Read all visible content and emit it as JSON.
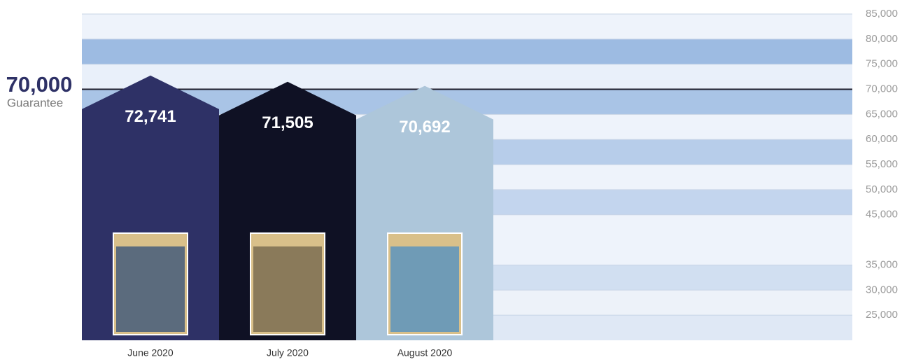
{
  "chart_data": {
    "type": "house-bar",
    "categories": [
      "June 2020",
      "July 2020",
      "August 2020"
    ],
    "values": [
      72741,
      71505,
      70692
    ],
    "value_labels": [
      "72,741",
      "71,505",
      "70,692"
    ],
    "colors": [
      "#2e3166",
      "#0f1124",
      "#adc6da"
    ],
    "ylim": [
      20000,
      85000
    ],
    "yticks": [
      {
        "value": 85000,
        "label": "85,000"
      },
      {
        "value": 80000,
        "label": "80,000"
      },
      {
        "value": 75000,
        "label": "75,000"
      },
      {
        "value": 70000,
        "label": "70,000"
      },
      {
        "value": 65000,
        "label": "65,000"
      },
      {
        "value": 60000,
        "label": "60,000"
      },
      {
        "value": 55000,
        "label": "55,000"
      },
      {
        "value": 50000,
        "label": "50,000"
      },
      {
        "value": 45000,
        "label": "45,000"
      },
      {
        "value": 35000,
        "label": "35,000"
      },
      {
        "value": 30000,
        "label": "30,000"
      },
      {
        "value": 25000,
        "label": "25,000"
      }
    ],
    "guarantee": {
      "value": 70000,
      "label": "70,000",
      "text": "Guarantee"
    }
  }
}
